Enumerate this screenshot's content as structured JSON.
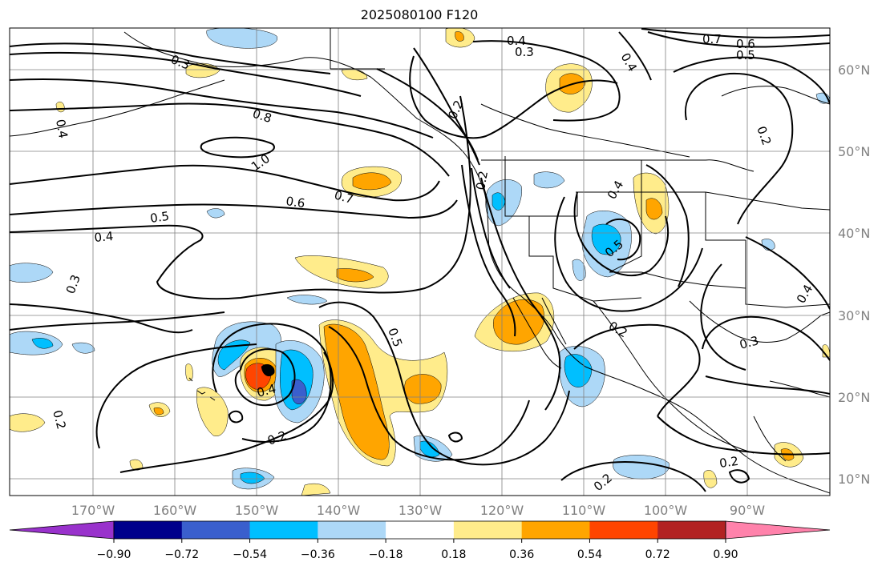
{
  "title": "2025080100 F120",
  "lat_ticks": [
    "60°N",
    "50°N",
    "40°N",
    "30°N",
    "20°N",
    "10°N"
  ],
  "lon_ticks": [
    "170°W",
    "160°W",
    "150°W",
    "140°W",
    "130°W",
    "120°W",
    "110°W",
    "100°W",
    "90°W"
  ],
  "colorbar": {
    "colors": [
      "#9932cc",
      "#00008b",
      "#3a5fcd",
      "#00bfff",
      "#add8f7",
      "#ffffff",
      "#ffec8b",
      "#ffa500",
      "#ff4500",
      "#b22222",
      "#ff82ab"
    ],
    "tick_labels": [
      "−0.90",
      "−0.72",
      "−0.54",
      "−0.36",
      "−0.18",
      "0.18",
      "0.36",
      "0.54",
      "0.72",
      "0.90"
    ]
  },
  "contour_labels": [
    {
      "text": "0.3"
    },
    {
      "text": "0.4"
    },
    {
      "text": "0.3"
    },
    {
      "text": "0.7"
    },
    {
      "text": "0.6"
    },
    {
      "text": "0.5"
    },
    {
      "text": "0.4"
    },
    {
      "text": "0.8"
    },
    {
      "text": "1.0"
    },
    {
      "text": "0.7"
    },
    {
      "text": "0.6"
    },
    {
      "text": "0.5"
    },
    {
      "text": "0.4"
    },
    {
      "text": "0.3"
    },
    {
      "text": "0.2"
    },
    {
      "text": "0.2"
    },
    {
      "text": "0.4"
    },
    {
      "text": "0.5"
    },
    {
      "text": "0.2"
    },
    {
      "text": "0.4"
    },
    {
      "text": "0.5"
    },
    {
      "text": "0.2"
    },
    {
      "text": "0.2"
    },
    {
      "text": "0.2"
    },
    {
      "text": "0.3"
    },
    {
      "text": "0.4"
    },
    {
      "text": "0.2"
    },
    {
      "text": "0.2"
    },
    {
      "text": "0.4"
    }
  ]
}
